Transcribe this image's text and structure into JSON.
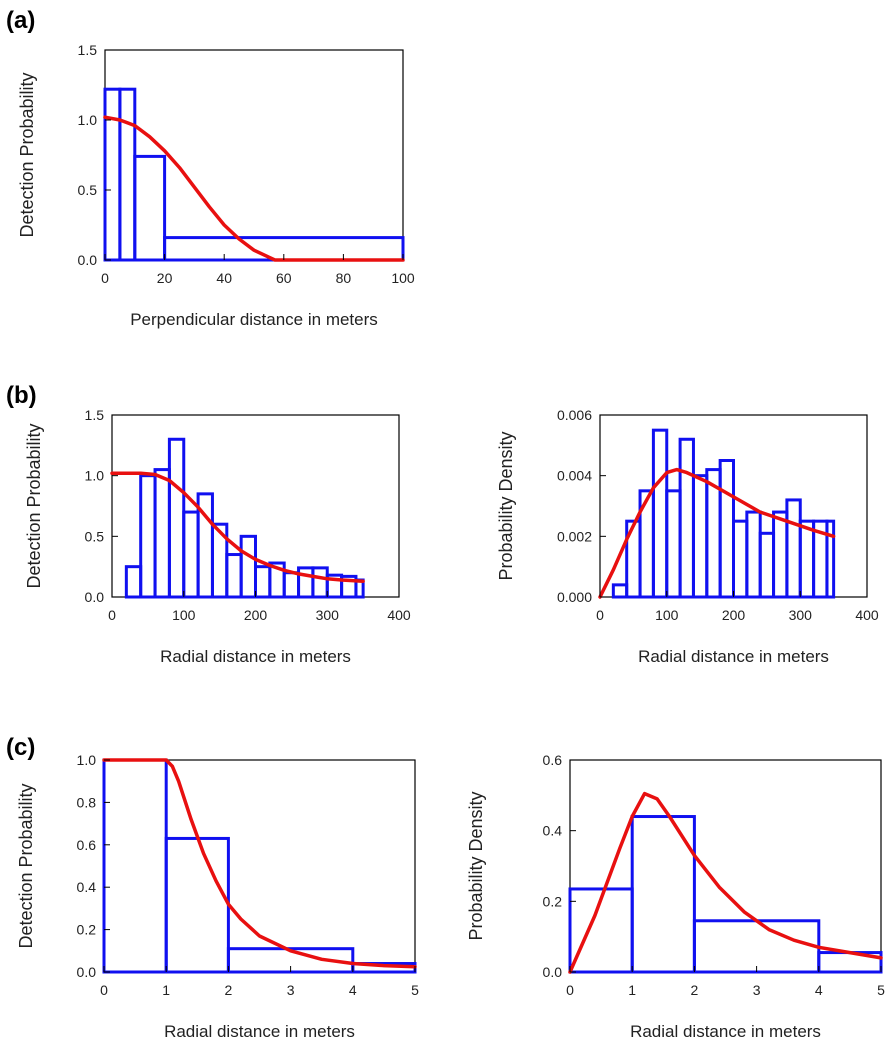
{
  "panel_labels": [
    "(a)",
    "(b)",
    "(c)"
  ],
  "chart_data": [
    {
      "id": "a",
      "type": "bar",
      "xlabel": "Perpendicular distance in meters",
      "ylabel": "Detection  Probability",
      "xlim": [
        0,
        100
      ],
      "ylim": [
        0,
        1.5
      ],
      "xticks": [
        0,
        20,
        40,
        60,
        80,
        100
      ],
      "yticks": [
        0.0,
        0.5,
        1.0,
        1.5
      ],
      "yticklabels": [
        "0.0",
        "0.5",
        "1.0",
        "1.5"
      ],
      "histogram": [
        {
          "x0": 0,
          "x1": 5,
          "value": 1.22
        },
        {
          "x0": 5,
          "x1": 10,
          "value": 1.22
        },
        {
          "x0": 10,
          "x1": 20,
          "value": 0.74
        },
        {
          "x0": 20,
          "x1": 100,
          "value": 0.16
        }
      ],
      "curve": [
        [
          0,
          1.02
        ],
        [
          5,
          1.0
        ],
        [
          10,
          0.96
        ],
        [
          15,
          0.88
        ],
        [
          20,
          0.78
        ],
        [
          25,
          0.66
        ],
        [
          30,
          0.52
        ],
        [
          35,
          0.38
        ],
        [
          40,
          0.25
        ],
        [
          45,
          0.15
        ],
        [
          50,
          0.07
        ],
        [
          55,
          0.02
        ],
        [
          57,
          0.0
        ],
        [
          100,
          0.0
        ]
      ]
    },
    {
      "id": "b-left",
      "type": "bar",
      "xlabel": "Radial distance in meters",
      "ylabel": "Detection  Probability",
      "xlim": [
        0,
        400
      ],
      "ylim": [
        0,
        1.5
      ],
      "xticks": [
        0,
        100,
        200,
        300,
        400
      ],
      "yticks": [
        0.0,
        0.5,
        1.0,
        1.5
      ],
      "yticklabels": [
        "0.0",
        "0.5",
        "1.0",
        "1.5"
      ],
      "histogram": [
        {
          "x0": 0,
          "x1": 20,
          "value": 0.0
        },
        {
          "x0": 20,
          "x1": 40,
          "value": 0.25
        },
        {
          "x0": 40,
          "x1": 60,
          "value": 1.0
        },
        {
          "x0": 60,
          "x1": 80,
          "value": 1.05
        },
        {
          "x0": 80,
          "x1": 100,
          "value": 1.3
        },
        {
          "x0": 100,
          "x1": 120,
          "value": 0.7
        },
        {
          "x0": 120,
          "x1": 140,
          "value": 0.85
        },
        {
          "x0": 140,
          "x1": 160,
          "value": 0.6
        },
        {
          "x0": 160,
          "x1": 180,
          "value": 0.35
        },
        {
          "x0": 180,
          "x1": 200,
          "value": 0.5
        },
        {
          "x0": 200,
          "x1": 220,
          "value": 0.25
        },
        {
          "x0": 220,
          "x1": 240,
          "value": 0.28
        },
        {
          "x0": 240,
          "x1": 260,
          "value": 0.2
        },
        {
          "x0": 260,
          "x1": 280,
          "value": 0.24
        },
        {
          "x0": 280,
          "x1": 300,
          "value": 0.24
        },
        {
          "x0": 300,
          "x1": 320,
          "value": 0.18
        },
        {
          "x0": 320,
          "x1": 340,
          "value": 0.17
        },
        {
          "x0": 340,
          "x1": 350,
          "value": 0.14
        }
      ],
      "curve": [
        [
          0,
          1.02
        ],
        [
          40,
          1.02
        ],
        [
          60,
          1.01
        ],
        [
          80,
          0.96
        ],
        [
          100,
          0.86
        ],
        [
          120,
          0.74
        ],
        [
          140,
          0.6
        ],
        [
          160,
          0.48
        ],
        [
          180,
          0.38
        ],
        [
          200,
          0.31
        ],
        [
          220,
          0.26
        ],
        [
          240,
          0.22
        ],
        [
          260,
          0.19
        ],
        [
          280,
          0.17
        ],
        [
          300,
          0.15
        ],
        [
          320,
          0.14
        ],
        [
          350,
          0.13
        ]
      ]
    },
    {
      "id": "b-right",
      "type": "bar",
      "xlabel": "Radial distance in meters",
      "ylabel": "Probability  Density",
      "xlim": [
        0,
        400
      ],
      "ylim": [
        0,
        0.006
      ],
      "xticks": [
        0,
        100,
        200,
        300,
        400
      ],
      "yticks": [
        0.0,
        0.002,
        0.004,
        0.006
      ],
      "yticklabels": [
        "0.000",
        "0.002",
        "0.004",
        "0.006"
      ],
      "histogram": [
        {
          "x0": 0,
          "x1": 20,
          "value": 0.0
        },
        {
          "x0": 20,
          "x1": 40,
          "value": 0.0004
        },
        {
          "x0": 40,
          "x1": 60,
          "value": 0.0025
        },
        {
          "x0": 60,
          "x1": 80,
          "value": 0.0035
        },
        {
          "x0": 80,
          "x1": 100,
          "value": 0.0055
        },
        {
          "x0": 100,
          "x1": 120,
          "value": 0.0035
        },
        {
          "x0": 120,
          "x1": 140,
          "value": 0.0052
        },
        {
          "x0": 140,
          "x1": 160,
          "value": 0.004
        },
        {
          "x0": 160,
          "x1": 180,
          "value": 0.0042
        },
        {
          "x0": 180,
          "x1": 200,
          "value": 0.0045
        },
        {
          "x0": 200,
          "x1": 220,
          "value": 0.0025
        },
        {
          "x0": 220,
          "x1": 240,
          "value": 0.0028
        },
        {
          "x0": 240,
          "x1": 260,
          "value": 0.0021
        },
        {
          "x0": 260,
          "x1": 280,
          "value": 0.0028
        },
        {
          "x0": 280,
          "x1": 300,
          "value": 0.0032
        },
        {
          "x0": 300,
          "x1": 320,
          "value": 0.0025
        },
        {
          "x0": 320,
          "x1": 340,
          "value": 0.0025
        },
        {
          "x0": 340,
          "x1": 350,
          "value": 0.0025
        }
      ],
      "curve": [
        [
          0,
          0.0
        ],
        [
          20,
          0.0009
        ],
        [
          40,
          0.0019
        ],
        [
          60,
          0.0028
        ],
        [
          80,
          0.0036
        ],
        [
          100,
          0.0041
        ],
        [
          115,
          0.0042
        ],
        [
          130,
          0.0041
        ],
        [
          160,
          0.0038
        ],
        [
          200,
          0.0033
        ],
        [
          240,
          0.0028
        ],
        [
          280,
          0.0025
        ],
        [
          320,
          0.0022
        ],
        [
          350,
          0.002
        ]
      ]
    },
    {
      "id": "c-left",
      "type": "bar",
      "xlabel": "Radial distance in meters",
      "ylabel": "Detection  Probability",
      "xlim": [
        0,
        5
      ],
      "ylim": [
        0,
        1.0
      ],
      "xticks": [
        0,
        1,
        2,
        3,
        4,
        5
      ],
      "yticks": [
        0.0,
        0.2,
        0.4,
        0.6,
        0.8,
        1.0
      ],
      "yticklabels": [
        "0.0",
        "0.2",
        "0.4",
        "0.6",
        "0.8",
        "1.0"
      ],
      "histogram": [
        {
          "x0": 0,
          "x1": 1,
          "value": 1.0
        },
        {
          "x0": 1,
          "x1": 2,
          "value": 0.63
        },
        {
          "x0": 2,
          "x1": 4,
          "value": 0.11
        },
        {
          "x0": 4,
          "x1": 5,
          "value": 0.04
        }
      ],
      "curve": [
        [
          0,
          1.0
        ],
        [
          1,
          1.0
        ],
        [
          1.1,
          0.97
        ],
        [
          1.2,
          0.9
        ],
        [
          1.4,
          0.72
        ],
        [
          1.6,
          0.56
        ],
        [
          1.8,
          0.43
        ],
        [
          2.0,
          0.32
        ],
        [
          2.2,
          0.25
        ],
        [
          2.5,
          0.17
        ],
        [
          3.0,
          0.1
        ],
        [
          3.5,
          0.06
        ],
        [
          4.0,
          0.04
        ],
        [
          4.5,
          0.03
        ],
        [
          5.0,
          0.025
        ]
      ]
    },
    {
      "id": "c-right",
      "type": "bar",
      "xlabel": "Radial distance in meters",
      "ylabel": "Probability  Density",
      "xlim": [
        0,
        5
      ],
      "ylim": [
        0,
        0.6
      ],
      "xticks": [
        0,
        1,
        2,
        3,
        4,
        5
      ],
      "yticks": [
        0.0,
        0.2,
        0.4,
        0.6
      ],
      "yticklabels": [
        "0.0",
        "0.2",
        "0.4",
        "0.6"
      ],
      "histogram": [
        {
          "x0": 0,
          "x1": 1,
          "value": 0.235
        },
        {
          "x0": 1,
          "x1": 2,
          "value": 0.44
        },
        {
          "x0": 2,
          "x1": 4,
          "value": 0.145
        },
        {
          "x0": 4,
          "x1": 5,
          "value": 0.055
        }
      ],
      "curve": [
        [
          0,
          0.0
        ],
        [
          0.4,
          0.16
        ],
        [
          0.8,
          0.35
        ],
        [
          1.0,
          0.44
        ],
        [
          1.2,
          0.505
        ],
        [
          1.4,
          0.49
        ],
        [
          1.6,
          0.44
        ],
        [
          2.0,
          0.33
        ],
        [
          2.4,
          0.24
        ],
        [
          2.8,
          0.17
        ],
        [
          3.2,
          0.12
        ],
        [
          3.6,
          0.09
        ],
        [
          4.0,
          0.07
        ],
        [
          4.5,
          0.055
        ],
        [
          5.0,
          0.04
        ]
      ]
    }
  ]
}
